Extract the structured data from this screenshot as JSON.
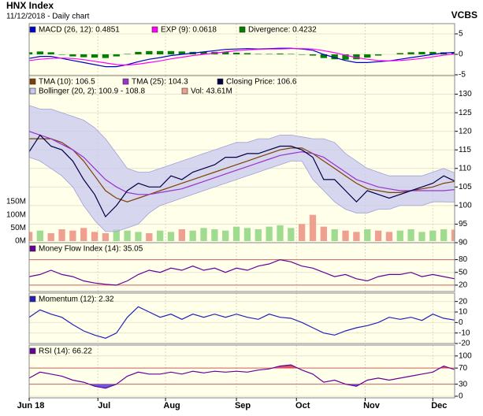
{
  "header": {
    "title": "HNX Index",
    "subtitle": "11/12/2018 - Daily chart",
    "brand": "VCBS"
  },
  "chart_data": [
    {
      "type": "line",
      "series": [
        {
          "name": "MACD (26, 12): 0.4851",
          "color": "#0000cc",
          "values": [
            -1,
            -0.5,
            -0.5,
            -1,
            -1.5,
            -2,
            -2.5,
            -3,
            -3,
            -2.5,
            -1.8,
            -1.2,
            -0.8,
            -0.3,
            0,
            0.3,
            0.6,
            0.9,
            1.2,
            1.3,
            1.4,
            1.3,
            1.4,
            1.5,
            1.5,
            1.3,
            1.0,
            0,
            -0.8,
            -1.5,
            -2,
            -2,
            -1.8,
            -1.6,
            -1.2,
            -0.8,
            -0.4,
            0,
            0.3,
            0.4851
          ]
        },
        {
          "name": "EXP (9): 0.0618",
          "color": "#ff00ff",
          "values": [
            -1.5,
            -1.2,
            -1,
            -0.9,
            -1,
            -1.3,
            -1.7,
            -2.1,
            -2.5,
            -2.6,
            -2.4,
            -2,
            -1.6,
            -1.1,
            -0.7,
            -0.3,
            0,
            0.3,
            0.6,
            0.9,
            1.1,
            1.2,
            1.3,
            1.3,
            1.4,
            1.4,
            1.3,
            0.9,
            0.4,
            -0.2,
            -0.8,
            -1.2,
            -1.5,
            -1.6,
            -1.5,
            -1.3,
            -1,
            -0.6,
            -0.2,
            0.0618
          ]
        },
        {
          "name": "Divergence: 0.4232",
          "color": "#008000",
          "kind": "bar",
          "values": [
            0.5,
            0.7,
            0.5,
            -0.1,
            -0.5,
            -0.7,
            -0.8,
            -0.9,
            -0.5,
            0.1,
            0.6,
            0.8,
            0.8,
            0.8,
            0.7,
            0.6,
            0.6,
            0.6,
            0.6,
            0.4,
            0.3,
            0.1,
            0.1,
            0.2,
            0.1,
            -0.1,
            -0.3,
            -0.9,
            -1.2,
            -1.3,
            -1.2,
            -0.8,
            -0.3,
            0,
            0.3,
            0.5,
            0.6,
            0.6,
            0.5,
            0.4232
          ]
        }
      ],
      "ylim": [
        -5.2,
        7.5
      ],
      "yticks": [
        -5,
        0,
        5
      ]
    },
    {
      "type": "line",
      "series": [
        {
          "name": "TMA (10): 106.5",
          "color": "#804000",
          "values": [
            118,
            118,
            118,
            117,
            115,
            112,
            108,
            104,
            102,
            101,
            102,
            103,
            104,
            105,
            106,
            107,
            108,
            109,
            110,
            111,
            112,
            113,
            114,
            115,
            115.5,
            115.5,
            114,
            112,
            110,
            108,
            106,
            104.5,
            104,
            103.5,
            103.5,
            104,
            104.5,
            105,
            106,
            106.5
          ]
        },
        {
          "name": "TMA (25): 104.3",
          "color": "#9933cc",
          "values": [
            120,
            119,
            118,
            116.5,
            115,
            113,
            110,
            107,
            105,
            103.5,
            103,
            103,
            103.5,
            104,
            104.5,
            105.5,
            106.5,
            107.5,
            108.5,
            109.5,
            110.5,
            111.5,
            112.5,
            113.5,
            114,
            114.5,
            114,
            113,
            111,
            109,
            107,
            106,
            105,
            104.5,
            104,
            104,
            104,
            104,
            104,
            104.3
          ]
        },
        {
          "name": "Closing Price: 106.6",
          "color": "#000044",
          "values": [
            114.5,
            119,
            116,
            115,
            112,
            107,
            103,
            97,
            100,
            104,
            106,
            105,
            105,
            108,
            107,
            109,
            110,
            111,
            113,
            113,
            114,
            114,
            115,
            116,
            116,
            115,
            113,
            107,
            107,
            104,
            101,
            104,
            103,
            102,
            103,
            104,
            105,
            106,
            108,
            106.6
          ]
        },
        {
          "name": "Bollinger (20, 2): 100.9 - 108.8",
          "color": "#c8c8f0",
          "kind": "band",
          "values": [
            127,
            126,
            126,
            125,
            124,
            123,
            121,
            118,
            114,
            110,
            109,
            109,
            110,
            111,
            112,
            113,
            114,
            115,
            116,
            117,
            117,
            118,
            118,
            119,
            119,
            118.5,
            118,
            118,
            117,
            114,
            112,
            110,
            109,
            108,
            108,
            108,
            108,
            109,
            110,
            108.8
          ],
          "lower": [
            113,
            112,
            110,
            108,
            105,
            100,
            96,
            93,
            93,
            94,
            95,
            98,
            100,
            101,
            102,
            103,
            104,
            105,
            106,
            107,
            108,
            109,
            110,
            111,
            112,
            112,
            107,
            104,
            101,
            99,
            98,
            98,
            99,
            99,
            100,
            100,
            100,
            101,
            101,
            100.9
          ]
        }
      ],
      "volume": {
        "name": "Vol: 43.61M",
        "color": "#f0a090",
        "up_color": "#a0dc90",
        "values": [
          35,
          40,
          30,
          45,
          40,
          50,
          35,
          30,
          45,
          40,
          35,
          30,
          40,
          35,
          45,
          40,
          50,
          45,
          40,
          55,
          50,
          45,
          55,
          60,
          50,
          65,
          100,
          55,
          45,
          40,
          35,
          45,
          40,
          35,
          40,
          45,
          35,
          40,
          45,
          43.61
        ],
        "ylim": [
          0,
          150
        ],
        "yticks": [
          {
            "value": 0,
            "label": "0M"
          },
          {
            "value": 50,
            "label": "50M"
          },
          {
            "value": 100,
            "label": "100M"
          },
          {
            "value": 150,
            "label": "150M"
          }
        ]
      },
      "ylim": [
        90,
        135
      ],
      "yticks": [
        90,
        95,
        100,
        105,
        110,
        115,
        120,
        125,
        130
      ]
    },
    {
      "type": "line",
      "series": [
        {
          "name": "Money Flow Index (14): 35.05",
          "color": "#660099",
          "values": [
            40,
            45,
            55,
            45,
            40,
            30,
            25,
            22,
            20,
            30,
            45,
            55,
            50,
            60,
            55,
            65,
            55,
            60,
            50,
            60,
            55,
            65,
            70,
            80,
            75,
            65,
            60,
            50,
            40,
            45,
            35,
            30,
            40,
            45,
            45,
            50,
            40,
            45,
            40,
            35.05
          ]
        }
      ],
      "levels": [
        20,
        80
      ],
      "level_color": "#cc6666",
      "ylim": [
        5,
        120
      ],
      "yticks": [
        20,
        50,
        80
      ]
    },
    {
      "type": "line",
      "series": [
        {
          "name": "Momentum (12): 2.32",
          "color": "#2222bb",
          "values": [
            5,
            12,
            8,
            5,
            -2,
            -8,
            -12,
            -15,
            -10,
            5,
            15,
            10,
            5,
            8,
            3,
            8,
            5,
            8,
            5,
            8,
            5,
            3,
            8,
            5,
            4,
            0,
            -5,
            -10,
            -12,
            -8,
            -5,
            -3,
            0,
            5,
            3,
            5,
            2,
            8,
            4,
            2.32
          ]
        }
      ],
      "ylim": [
        -20,
        28
      ],
      "yticks": [
        -20,
        -10,
        0,
        10,
        20
      ]
    },
    {
      "type": "line",
      "series": [
        {
          "name": "RSI (14): 66.22",
          "color": "#660099",
          "values": [
            45,
            60,
            55,
            50,
            40,
            35,
            25,
            20,
            30,
            50,
            60,
            55,
            55,
            60,
            55,
            62,
            58,
            62,
            60,
            62,
            60,
            65,
            68,
            75,
            78,
            65,
            55,
            35,
            40,
            30,
            25,
            40,
            45,
            40,
            45,
            50,
            55,
            60,
            75,
            66.22
          ]
        }
      ],
      "levels": [
        30,
        70
      ],
      "level_color": "#cc6666",
      "low_fill": "#6a5ae0",
      "high_fill": "#e0506a",
      "ylim": [
        -4,
        127
      ],
      "yticks": [
        0,
        30,
        70,
        100
      ],
      "xlim": [
        0,
        39
      ],
      "xticks": [
        {
          "value": 0,
          "label": "Jun 18"
        },
        {
          "value": 6.3,
          "label": "Jul"
        },
        {
          "value": 12.5,
          "label": "Aug"
        },
        {
          "value": 19,
          "label": "Sep"
        },
        {
          "value": 24.5,
          "label": "Oct"
        },
        {
          "value": 30.8,
          "label": "Nov"
        },
        {
          "value": 37,
          "label": "Dec"
        }
      ]
    }
  ]
}
